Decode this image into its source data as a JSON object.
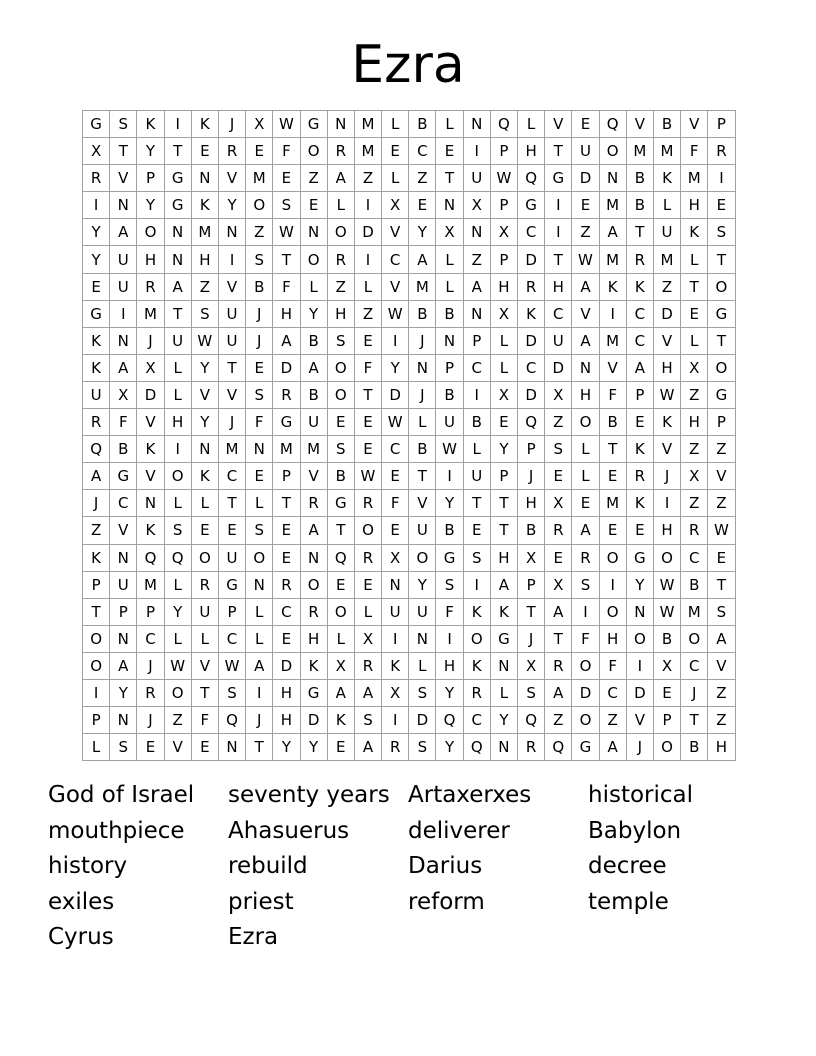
{
  "title": "Ezra",
  "grid": [
    "GSKIKJXWGNMLBLNQLVEQVBVP",
    "XTYTEREFORMECEIPHTUOMMFR",
    "RVPGNVMEZAZLZTUWQGDNBKMI",
    "INYGKYOSELIXENXPGIEMBLHE",
    "YAONMNZWNODVYXNXCIZATUKS",
    "YUHNHISTORICALZPDTWMRMLT",
    "EURAZVBFLZLVMLAHRHAKKZTO",
    "GIMTSUJHYHZWBBNXKCVICDEG",
    "KNJUWUJABSEIJNPLDUAMCVLT",
    "KAXLYTEDAOFYNPCLCDNVAHXO",
    "UXDLVVSRBOTDJBIXDXHFPWZG",
    "RFVHYJFGUEEWLUBEQZOBEKHP",
    "QBKINMNMMSECBWLYPSLTKVZZ",
    "AGVOKCEPVBWETIUPJELERJXV",
    "JCNLLTLTRGRFVYTTHXEMKIZZ",
    "ZVKSEESEATOEUBETBRAEEHRW",
    "KNQQOUOENQRXOGSHXEROGOCE",
    "PUMLRGNROEENYSIAPXSIYWBT",
    "TPPYUPLCROLUUFKKTAIONWMS",
    "ONCLLCLEHLXINIOGJTFHOBOA",
    "OAJWVWADKXRKLHKNXROFIXCV",
    "IYROTSIHGAAXSYRLSADCDEJZ",
    "PNJZFQJHDKSIDQCYQZOZVPTZ",
    "LSEVENTYYEARSYQNRQGAJOBH"
  ],
  "words": [
    "God of Israel",
    "seventy years",
    "Artaxerxes",
    "historical",
    "mouthpiece",
    "Ahasuerus",
    "deliverer",
    "Babylon",
    "history",
    "rebuild",
    "Darius",
    "decree",
    "exiles",
    "priest",
    "reform",
    "temple",
    "Cyrus",
    "Ezra"
  ]
}
